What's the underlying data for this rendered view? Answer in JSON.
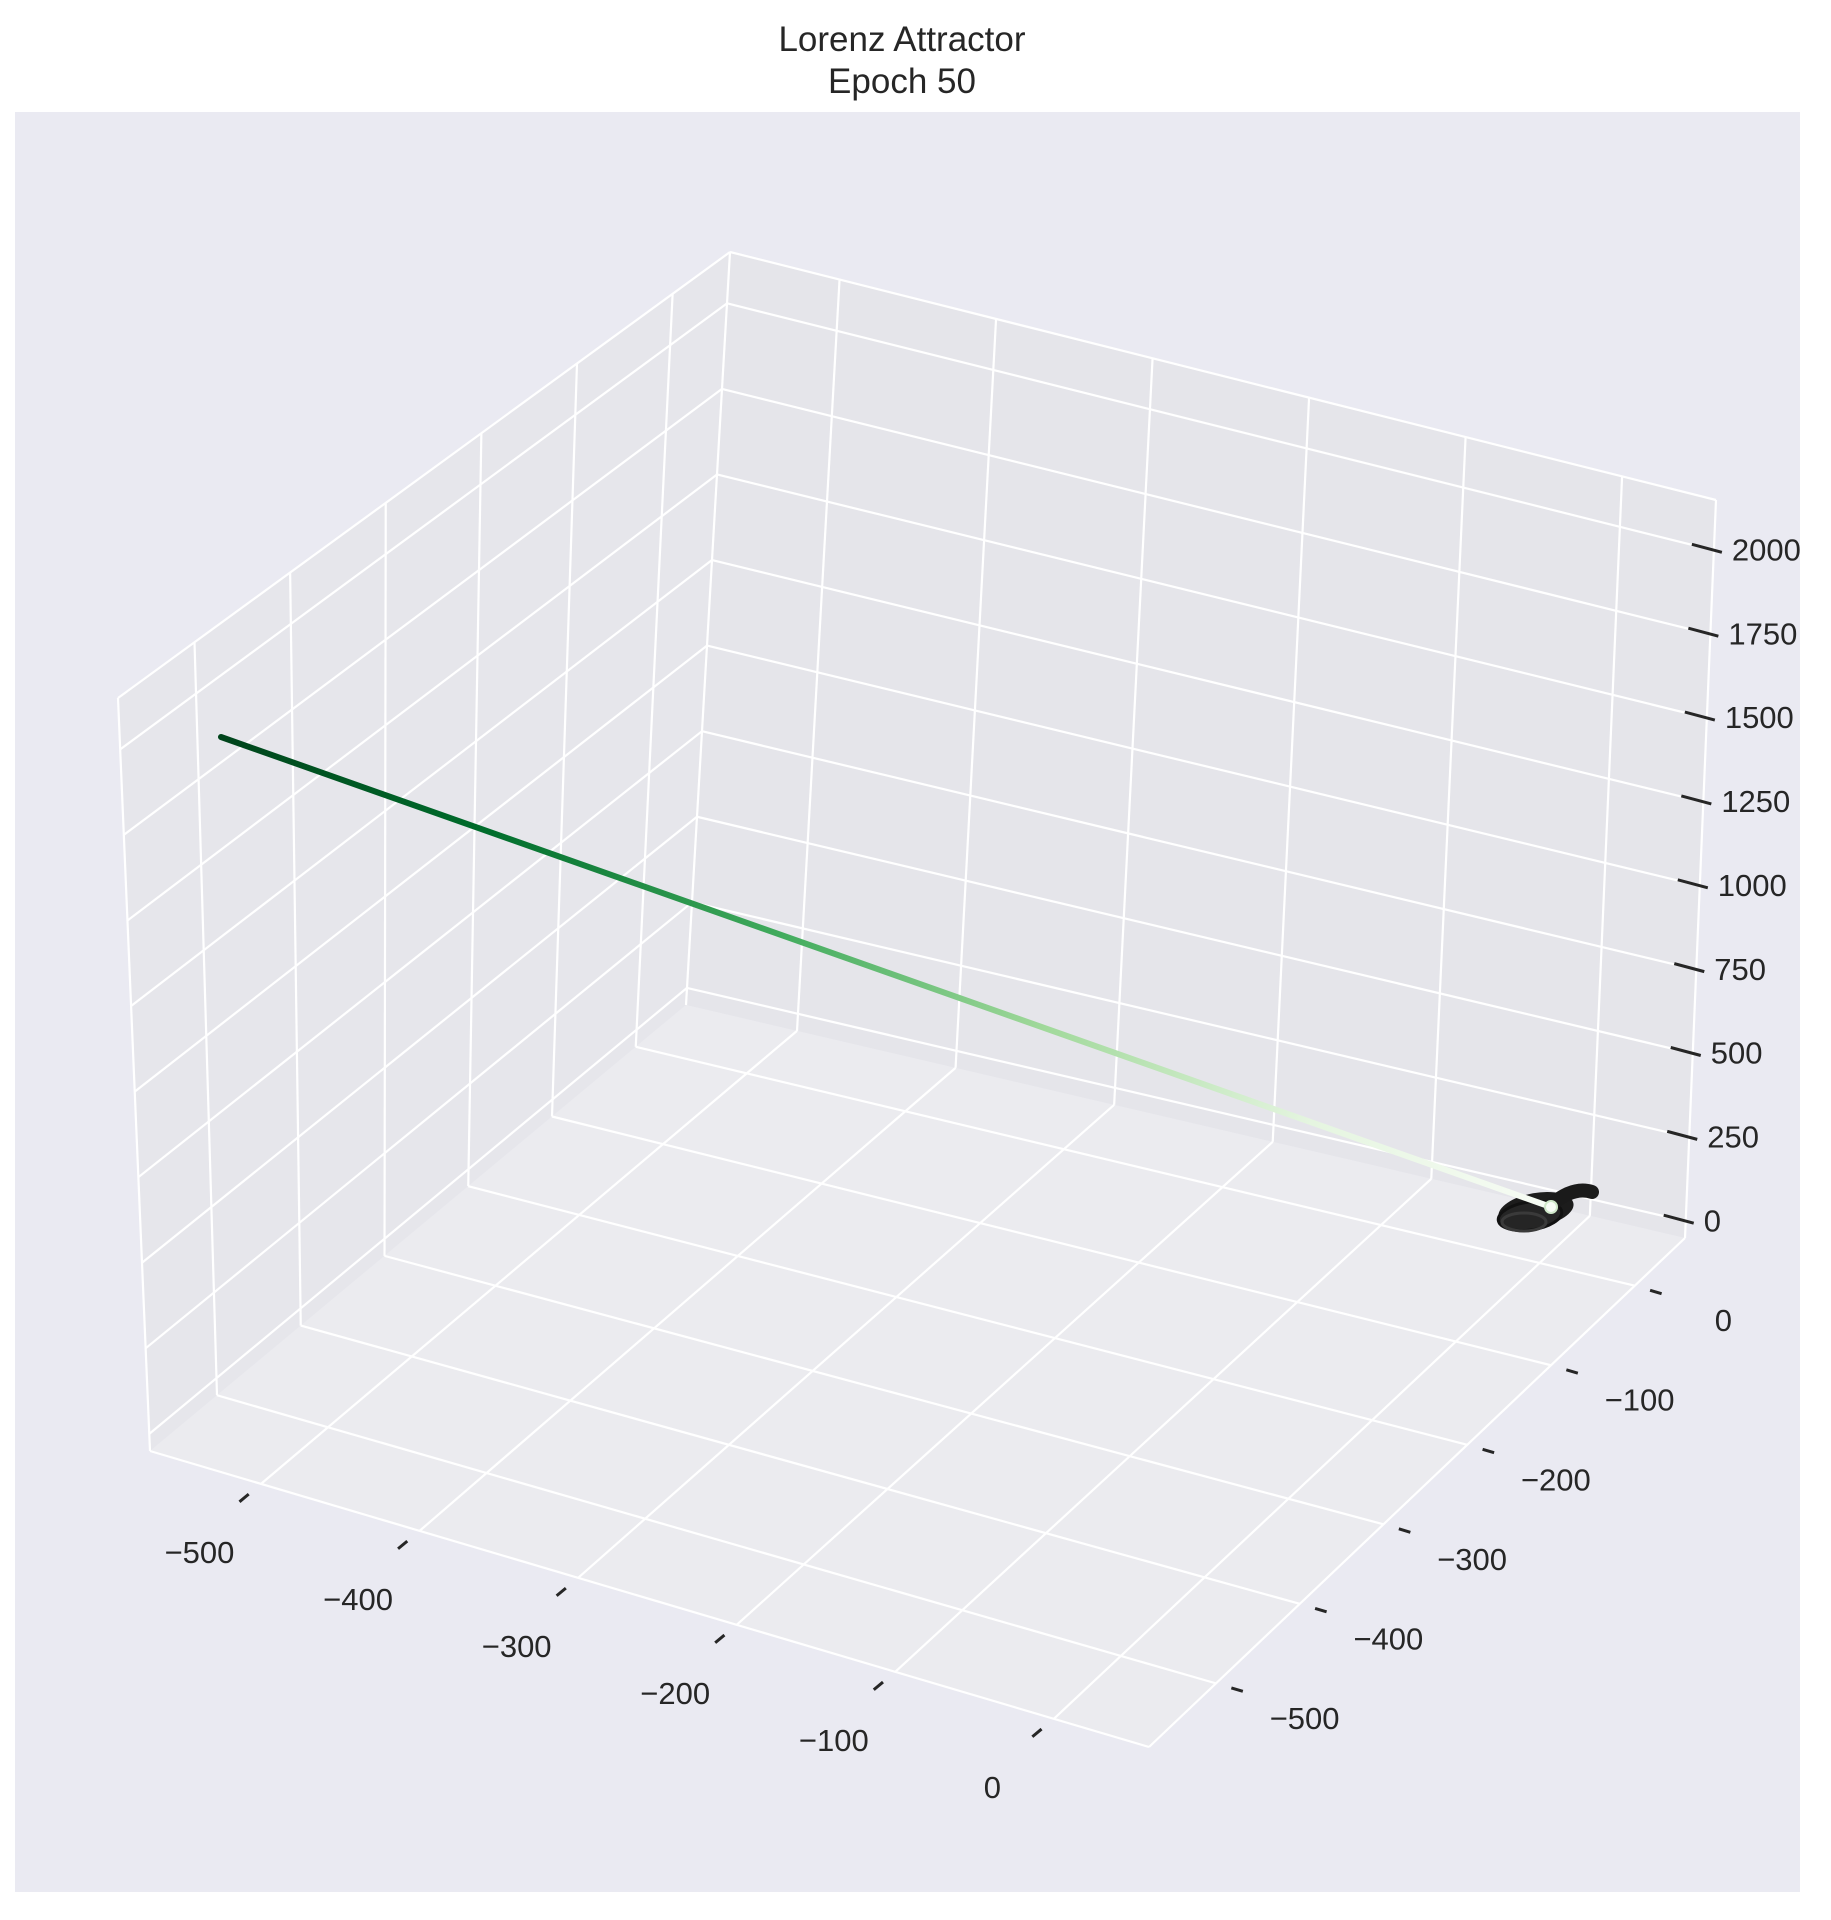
{
  "title": [
    "Lorenz Attractor",
    "Epoch 50"
  ],
  "chart_data": {
    "type": "line3d",
    "title": "Lorenz Attractor\nEpoch 50",
    "xlabel": "",
    "ylabel": "",
    "zlabel": "",
    "xlim": [
      -570,
      60
    ],
    "ylim": [
      -580,
      60
    ],
    "zlim": [
      -50,
      2150
    ],
    "x_ticks": [
      -500,
      -400,
      -300,
      -200,
      -100,
      0
    ],
    "y_ticks": [
      0,
      -100,
      -200,
      -300,
      -400,
      -500
    ],
    "z_ticks": [
      0,
      250,
      500,
      750,
      1000,
      1250,
      1500,
      1750,
      2000
    ],
    "x_tick_labels": [
      "−500",
      "−400",
      "−300",
      "−200",
      "−100",
      "0"
    ],
    "y_tick_labels": [
      "0",
      "−100",
      "−200",
      "−300",
      "−400",
      "−500"
    ],
    "z_tick_labels": [
      "0",
      "250",
      "500",
      "750",
      "1000",
      "1250",
      "1500",
      "1750",
      "2000"
    ],
    "grid": true,
    "pane_color": "#e6e6ec",
    "background": "#eaeaf2",
    "series": [
      {
        "style": "gradient-line",
        "colormap": "Greens",
        "color_start": "#f7fcf5",
        "color_end": "#00441b",
        "points": [
          {
            "x": 0,
            "y": 0,
            "z": 0
          },
          {
            "x": -560,
            "y": -555,
            "z": 1760
          }
        ]
      },
      {
        "style": "attractor-cluster",
        "color": "#1c1c1c",
        "center": {
          "x": 5,
          "y": 5,
          "z": 20
        }
      }
    ]
  }
}
